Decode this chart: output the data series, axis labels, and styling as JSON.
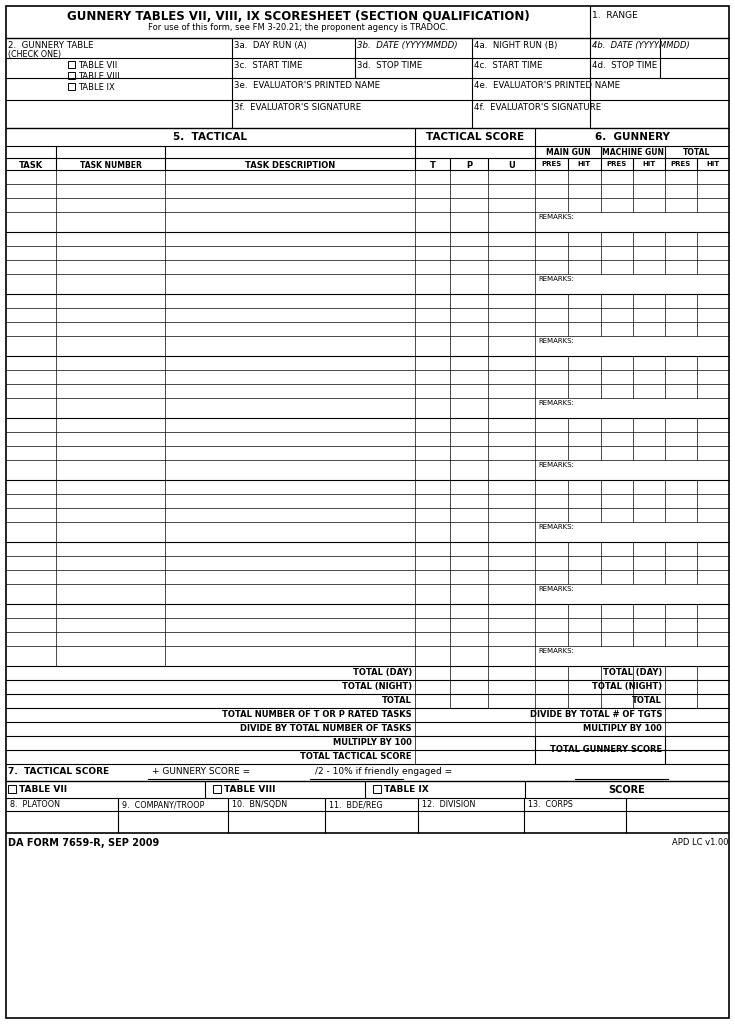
{
  "title_main": "GUNNERY TABLES VII, VIII, IX SCORESHEET (SECTION QUALIFICATION)",
  "title_sub": "For use of this form, see FM 3-20.21; the proponent agency is TRADOC.",
  "form_id": "DA FORM 7659-R, SEP 2009",
  "version": "APD LC v1.00",
  "bg_color": "#ffffff",
  "line_color": "#000000"
}
